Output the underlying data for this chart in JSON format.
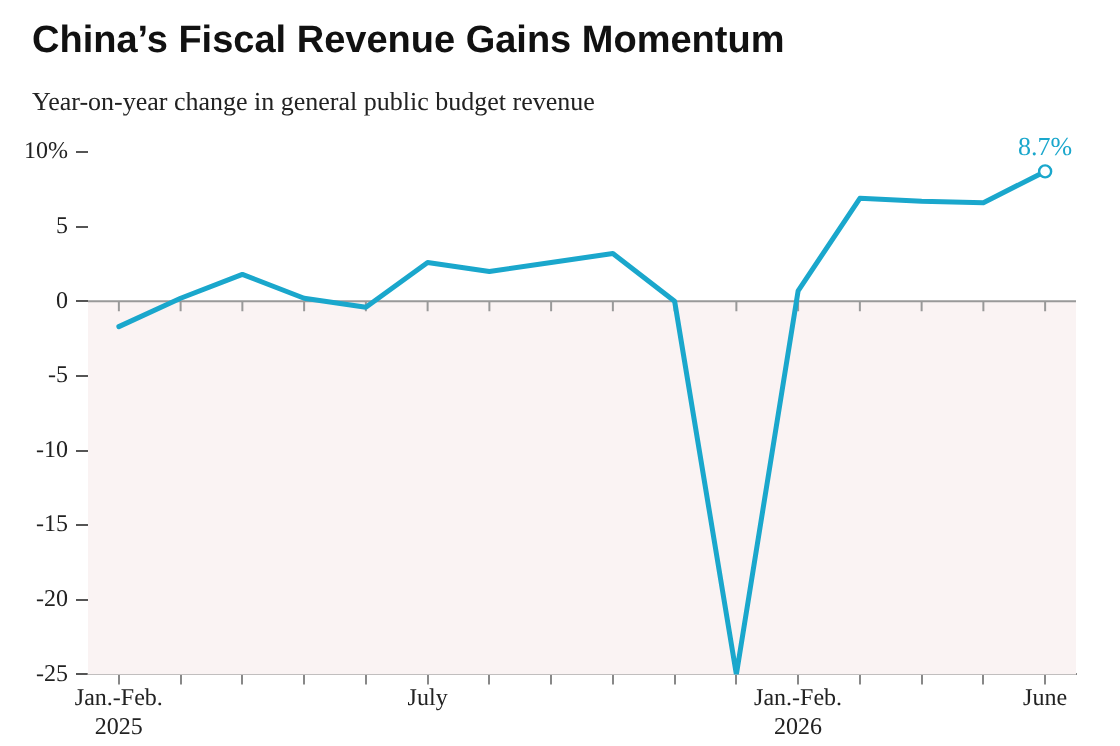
{
  "chart_data": {
    "type": "line",
    "title": "China’s Fiscal Revenue Gains Momentum",
    "subtitle": "Year-on-year change in general public budget revenue",
    "categories": [
      "Jan.-Feb.\n2025",
      null,
      null,
      null,
      null,
      "July",
      null,
      null,
      null,
      null,
      null,
      "Jan.-Feb.\n2026",
      null,
      null,
      null,
      "June"
    ],
    "series": [
      {
        "color": "#1aa7cc",
        "values": [
          -1.7,
          0.2,
          1.8,
          0.2,
          -0.4,
          2.6,
          2.0,
          2.6,
          3.2,
          0,
          -25,
          0.7,
          6.9,
          6.7,
          6.6,
          8.7
        ],
        "value_labels": [
          null,
          null,
          null,
          null,
          null,
          null,
          null,
          null,
          null,
          null,
          null,
          null,
          null,
          null,
          null,
          "8.7%"
        ]
      }
    ],
    "ylim": [
      -25,
      10
    ],
    "yticks": [
      {
        "value": 10,
        "label": "10%"
      },
      5,
      0,
      -5,
      -10,
      -15,
      -20,
      -25
    ],
    "grid": false,
    "legend": false,
    "marker": "none",
    "line_style": "solid",
    "ref_lines": [
      {
        "axis": "y",
        "value": 0,
        "color": "#999999"
      }
    ],
    "bands": [
      {
        "axis": "y",
        "from": -25,
        "to": 0,
        "color": "#faf3f3"
      }
    ]
  }
}
